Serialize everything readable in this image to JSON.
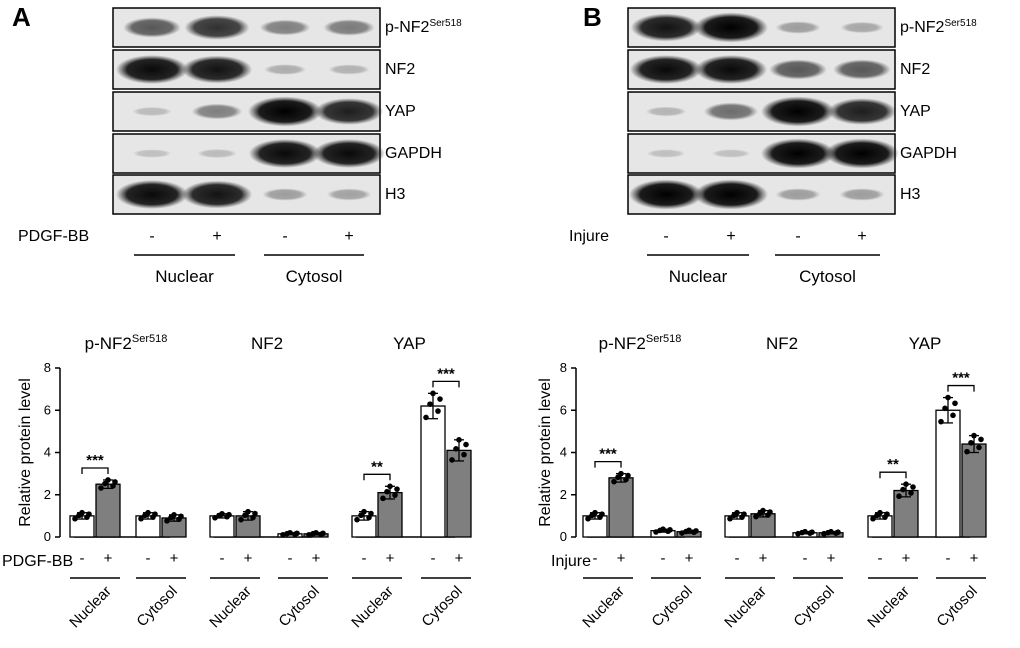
{
  "panels": [
    {
      "label": "A",
      "treatment_label": "PDGF-BB",
      "lanes": [
        "-",
        "+",
        "-",
        "+"
      ],
      "fractions": [
        "Nuclear",
        "Cytosol"
      ],
      "blot_rows": [
        {
          "main": "p-NF2",
          "sup": "Ser518",
          "intensity": [
            0.55,
            0.75,
            0.35,
            0.38
          ]
        },
        {
          "main": "NF2",
          "sup": "",
          "intensity": [
            0.95,
            0.9,
            0.12,
            0.1
          ]
        },
        {
          "main": "YAP",
          "sup": "",
          "intensity": [
            0.05,
            0.35,
            1.0,
            0.85
          ]
        },
        {
          "main": "GAPDH",
          "sup": "",
          "intensity": [
            0.02,
            0.05,
            0.95,
            0.95
          ]
        },
        {
          "main": "H3",
          "sup": "",
          "intensity": [
            0.95,
            0.9,
            0.2,
            0.18
          ]
        }
      ]
    },
    {
      "label": "B",
      "treatment_label": "Injure",
      "lanes": [
        "-",
        "+",
        "-",
        "+"
      ],
      "fractions": [
        "Nuclear",
        "Cytosol"
      ],
      "blot_rows": [
        {
          "main": "p-NF2",
          "sup": "Ser518",
          "intensity": [
            0.9,
            1.0,
            0.2,
            0.15
          ]
        },
        {
          "main": "NF2",
          "sup": "",
          "intensity": [
            0.95,
            0.95,
            0.55,
            0.55
          ]
        },
        {
          "main": "YAP",
          "sup": "",
          "intensity": [
            0.08,
            0.45,
            1.0,
            0.85
          ]
        },
        {
          "main": "GAPDH",
          "sup": "",
          "intensity": [
            0.02,
            0.02,
            1.0,
            1.0
          ]
        },
        {
          "main": "H3",
          "sup": "",
          "intensity": [
            1.0,
            1.0,
            0.2,
            0.2
          ]
        }
      ]
    }
  ],
  "chart_data": [
    {
      "type": "bar",
      "ylabel": "Relative protein level",
      "ylim": [
        0,
        8
      ],
      "yticks": [
        0,
        2,
        4,
        6,
        8
      ],
      "treatment_label": "PDGF-BB",
      "lane_signs": [
        "-",
        "+"
      ],
      "group_labels": [
        "Nuclear",
        "Cytosol"
      ],
      "proteins": [
        {
          "main": "p-NF2",
          "sup": "Ser518",
          "values": [
            1.0,
            2.5,
            1.0,
            0.9
          ],
          "errors": [
            0.15,
            0.2,
            0.15,
            0.15
          ],
          "sig": [
            {
              "label": "***",
              "between": [
                0,
                1
              ]
            }
          ]
        },
        {
          "main": "NF2",
          "sup": "",
          "values": [
            1.0,
            1.0,
            0.15,
            0.15
          ],
          "errors": [
            0.1,
            0.2,
            0.05,
            0.05
          ],
          "sig": []
        },
        {
          "main": "YAP",
          "sup": "",
          "values": [
            1.0,
            2.1,
            6.2,
            4.1
          ],
          "errors": [
            0.2,
            0.3,
            0.6,
            0.5
          ],
          "sig": [
            {
              "label": "**",
              "between": [
                0,
                1
              ]
            },
            {
              "label": "***",
              "between": [
                2,
                3
              ]
            }
          ]
        }
      ],
      "bar_colors": [
        "#ffffff",
        "#7f7f7f"
      ]
    },
    {
      "type": "bar",
      "ylabel": "Relative protein level",
      "ylim": [
        0,
        8
      ],
      "yticks": [
        0,
        2,
        4,
        6,
        8
      ],
      "treatment_label": "Injure",
      "lane_signs": [
        "-",
        "+"
      ],
      "group_labels": [
        "Nuclear",
        "Cytosol"
      ],
      "proteins": [
        {
          "main": "p-NF2",
          "sup": "Ser518",
          "values": [
            1.0,
            2.8,
            0.3,
            0.25
          ],
          "errors": [
            0.15,
            0.2,
            0.07,
            0.07
          ],
          "sig": [
            {
              "label": "***",
              "between": [
                0,
                1
              ]
            }
          ]
        },
        {
          "main": "NF2",
          "sup": "",
          "values": [
            1.0,
            1.1,
            0.2,
            0.2
          ],
          "errors": [
            0.15,
            0.15,
            0.05,
            0.05
          ],
          "sig": []
        },
        {
          "main": "YAP",
          "sup": "",
          "values": [
            1.0,
            2.2,
            6.0,
            4.4
          ],
          "errors": [
            0.15,
            0.3,
            0.6,
            0.4
          ],
          "sig": [
            {
              "label": "**",
              "between": [
                0,
                1
              ]
            },
            {
              "label": "***",
              "between": [
                2,
                3
              ]
            }
          ]
        }
      ],
      "bar_colors": [
        "#ffffff",
        "#7f7f7f"
      ]
    }
  ]
}
